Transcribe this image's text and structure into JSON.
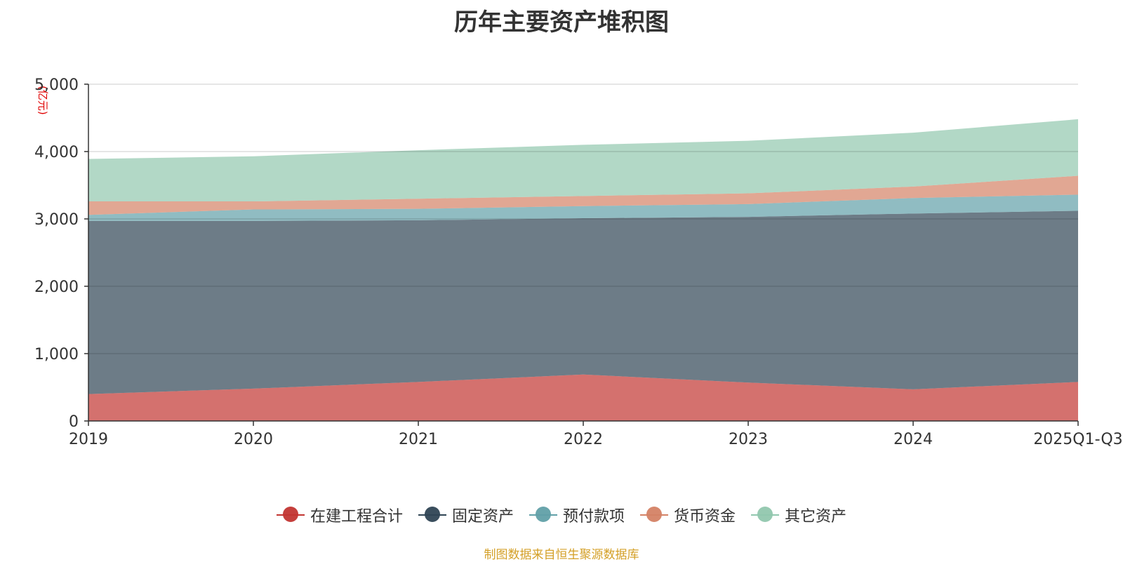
{
  "title": "历年主要资产堆积图",
  "unit_label": "(亿元)",
  "source": "制图数据来自恒生聚源数据库",
  "chart_data": {
    "type": "area",
    "stacked": true,
    "title": "历年主要资产堆积图",
    "ylabel": "(亿元)",
    "xlabel": "",
    "categories": [
      "2019",
      "2020",
      "2021",
      "2022",
      "2023",
      "2024",
      "2025Q1-Q3"
    ],
    "ylim": [
      0,
      5000
    ],
    "yticks": [
      0,
      1000,
      2000,
      3000,
      4000,
      5000
    ],
    "ytick_labels": [
      "0",
      "1,000",
      "2,000",
      "3,000",
      "4,000",
      "5,000"
    ],
    "grid": true,
    "legend_position": "bottom",
    "series": [
      {
        "name": "在建工程合计",
        "color": "#c23531",
        "values": [
          400,
          480,
          580,
          690,
          570,
          470,
          580
        ]
      },
      {
        "name": "固定资产",
        "color": "#2f4554",
        "values": [
          2570,
          2490,
          2400,
          2320,
          2460,
          2610,
          2540
        ]
      },
      {
        "name": "预付款项",
        "color": "#61a0a8",
        "values": [
          90,
          170,
          170,
          180,
          190,
          230,
          240
        ]
      },
      {
        "name": "货币资金",
        "color": "#d48265",
        "values": [
          200,
          120,
          150,
          150,
          160,
          170,
          280
        ]
      },
      {
        "name": "其它资产",
        "color": "#91c7ae",
        "values": [
          630,
          670,
          720,
          760,
          780,
          800,
          840
        ]
      }
    ]
  }
}
